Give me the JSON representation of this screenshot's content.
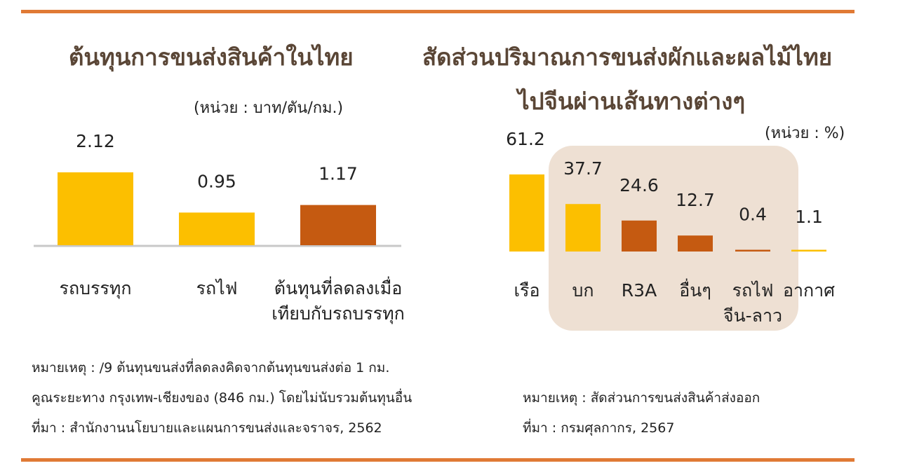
{
  "colors": {
    "rule": "#e07a35",
    "title": "#5a4636",
    "bar_primary": "#fcbf00",
    "bar_secondary": "#c55a11",
    "highlight_box": "#eee0d3",
    "baseline": "#c8c8c8"
  },
  "left": {
    "title": "ต้นทุนการขนส่งสินค้าในไทย",
    "unit": "(หน่วย : บาท/ตัน/กม.)",
    "notes": [
      "หมายเหตุ : /9 ต้นทุนขนส่งที่ลดลงคิดจากต้นทุนขนส่งต่อ 1 กม.",
      "คูณระยะทาง กรุงเทพ-เชียงของ (846 กม.) โดยไม่นับรวมต้นทุนอื่น",
      "ที่มา : สำนักงานนโยบายและแผนการขนส่งและจราจร, 2562"
    ]
  },
  "right": {
    "title_line1": "สัดส่วนปริมาณการขนส่งผักและผลไม้ไทย",
    "title_line2": "ไปจีนผ่านเส้นทางต่างๆ",
    "unit": "(หน่วย : %)",
    "notes": [
      "หมายเหตุ : สัดส่วนการขนส่งสินค้าส่งออก",
      "ที่มา : กรมศุลกากร, 2567"
    ]
  },
  "chart_data": [
    {
      "type": "bar",
      "categories": [
        "รถบรรทุก",
        "รถไฟ",
        "ต้นทุนที่ลดลงเมื่อ เทียบกับรถบรรทุก"
      ],
      "category_lines": [
        [
          "รถบรรทุก"
        ],
        [
          "รถไฟ"
        ],
        [
          "ต้นทุนที่ลดลงเมื่อ",
          "เทียบกับรถบรรทุก"
        ]
      ],
      "values": [
        2.12,
        0.95,
        1.17
      ],
      "value_labels": [
        "2.12",
        "0.95",
        "1.17"
      ],
      "bar_colors": [
        "#fcbf00",
        "#fcbf00",
        "#c55a11"
      ],
      "title": "ต้นทุนการขนส่งสินค้าในไทย",
      "xlabel": "",
      "ylabel": "",
      "ylim": [
        0,
        2.4
      ],
      "grid": false
    },
    {
      "type": "bar",
      "categories": [
        "เรือ",
        "บก",
        "R3A",
        "อื่นๆ",
        "รถไฟ จีน-ลาว",
        "อากาศ"
      ],
      "category_lines": [
        [
          "เรือ"
        ],
        [
          "บก"
        ],
        [
          "R3A"
        ],
        [
          "อื่นๆ"
        ],
        [
          "รถไฟ",
          "จีน-ลาว"
        ],
        [
          "อากาศ"
        ]
      ],
      "values": [
        61.2,
        37.7,
        24.6,
        12.7,
        0.4,
        1.1
      ],
      "value_labels": [
        "61.2",
        "37.7",
        "24.6",
        "12.7",
        "0.4",
        "1.1"
      ],
      "bar_colors": [
        "#fcbf00",
        "#fcbf00",
        "#c55a11",
        "#c55a11",
        "#c55a11",
        "#fcbf00"
      ],
      "highlighted_categories": [
        "บก",
        "R3A",
        "อื่นๆ",
        "รถไฟ จีน-ลาว"
      ],
      "title": "สัดส่วนปริมาณการขนส่งผักและผลไม้ไทย ไปจีนผ่านเส้นทางต่างๆ",
      "xlabel": "",
      "ylabel": "",
      "ylim": [
        0,
        61.2
      ],
      "grid": false
    }
  ]
}
